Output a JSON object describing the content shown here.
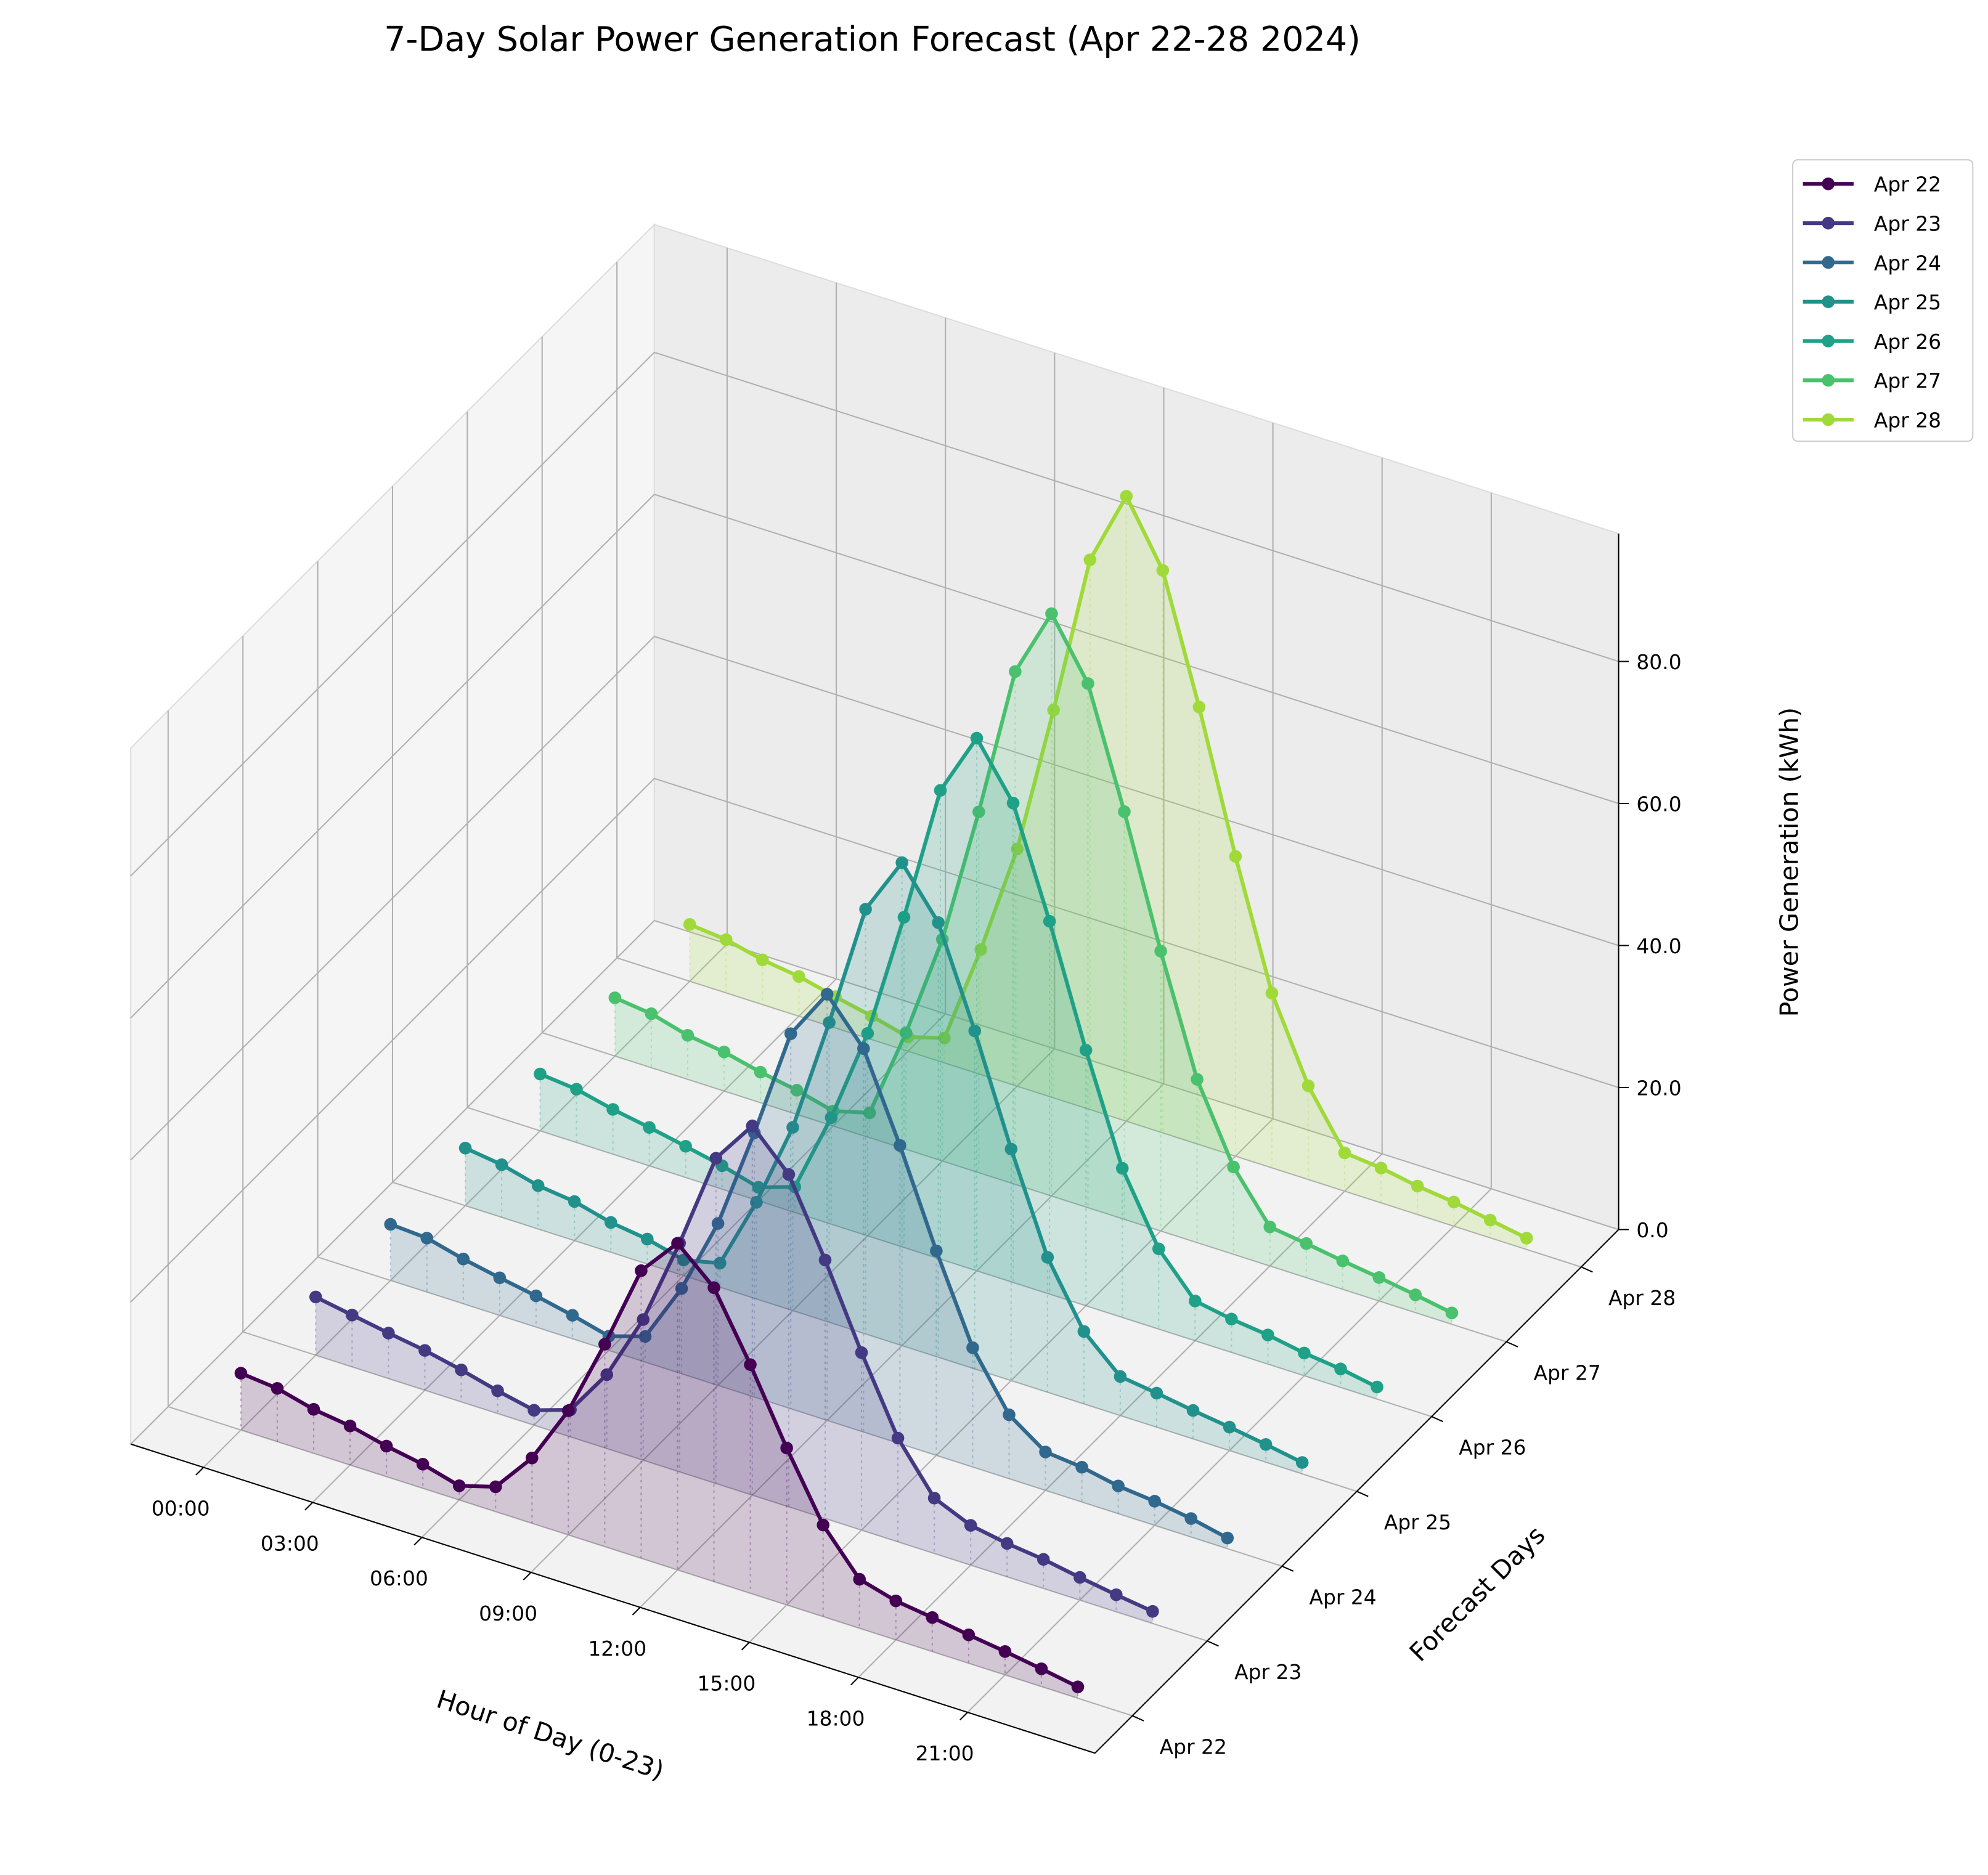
{
  "chart_data": {
    "type": "line3d",
    "title": "7-Day Solar Power Generation Forecast (Apr 22-28 2024)",
    "x_label": "Hour of Day (0-23)",
    "y_label": "Forecast Days",
    "z_label": "Power Generation (kWh)",
    "x": [
      0,
      1,
      2,
      3,
      4,
      5,
      6,
      7,
      8,
      9,
      10,
      11,
      12,
      13,
      14,
      15,
      16,
      17,
      18,
      19,
      20,
      21,
      22,
      23
    ],
    "xlim": [
      -2,
      24.5
    ],
    "xticks": [
      {
        "value": 0,
        "label": "00:00"
      },
      {
        "value": 3,
        "label": "03:00"
      },
      {
        "value": 6,
        "label": "06:00"
      },
      {
        "value": 9,
        "label": "09:00"
      },
      {
        "value": 12,
        "label": "12:00"
      },
      {
        "value": 15,
        "label": "15:00"
      },
      {
        "value": 18,
        "label": "18:00"
      },
      {
        "value": 21,
        "label": "21:00"
      }
    ],
    "ylim": [
      -0.5,
      6.5
    ],
    "zlim": [
      0,
      98
    ],
    "zticks": [
      {
        "value": 0,
        "label": "0.0"
      },
      {
        "value": 20,
        "label": "20.0"
      },
      {
        "value": 40,
        "label": "40.0"
      },
      {
        "value": 60,
        "label": "60.0"
      },
      {
        "value": 80,
        "label": "80.0"
      }
    ],
    "grid": true,
    "legend": "upper right",
    "series": [
      {
        "name": "Apr 22",
        "color": "#440154",
        "values": [
          8,
          7.5,
          6.2,
          5.5,
          4.3,
          3.4,
          2,
          3.5,
          9.2,
          17.5,
          28.5,
          40.5,
          46,
          41.4,
          32.2,
          22.1,
          12.9,
          6.9,
          5.5,
          4.8,
          4,
          3.3,
          2.5,
          1.6
        ]
      },
      {
        "name": "Apr 23",
        "color": "#443983",
        "values": [
          8.2,
          7.3,
          6.4,
          5.6,
          4.5,
          3.2,
          2.1,
          3.8,
          10.4,
          19.8,
          32.2,
          45.8,
          52,
          46.8,
          36.4,
          25,
          14.6,
          7.8,
          5.6,
          4.7,
          4.1,
          3.2,
          2.4,
          1.7
        ]
      },
      {
        "name": "Apr 24",
        "color": "#31688e",
        "values": [
          7.9,
          7.6,
          6.3,
          5.3,
          4.4,
          3.3,
          2,
          3.6,
          12,
          22.8,
          37.2,
          52.8,
          60,
          54,
          42,
          28.8,
          16.8,
          9,
          5.4,
          4.9,
          3.9,
          3.4,
          2.6,
          1.5
        ]
      },
      {
        "name": "Apr 25",
        "color": "#21918c",
        "values": [
          8.1,
          7.4,
          6.1,
          5.5,
          4.2,
          3.5,
          2.2,
          3.4,
          13.6,
          25.8,
          42.2,
          59.8,
          68,
          61.2,
          47.6,
          32.6,
          19,
          10.2,
          5.5,
          4.8,
          4,
          3.3,
          2.5,
          1.6
        ]
      },
      {
        "name": "Apr 26",
        "color": "#1fa187",
        "values": [
          8,
          7.5,
          6.3,
          5.4,
          4.4,
          3.3,
          1.9,
          3.6,
          15,
          28.5,
          46.5,
          66,
          75,
          67.5,
          52.5,
          36,
          21,
          11.3,
          5.6,
          4.7,
          4.1,
          3.2,
          2.6,
          1.7
        ]
      },
      {
        "name": "Apr 27",
        "color": "#4ac16d",
        "values": [
          8.2,
          7.6,
          6.2,
          5.5,
          4.3,
          3.4,
          2.1,
          3.5,
          16.4,
          31.2,
          50.8,
          72.2,
          82,
          73.8,
          57.4,
          39.4,
          23,
          12.3,
          5.5,
          4.8,
          4,
          3.3,
          2.5,
          1.6
        ]
      },
      {
        "name": "Apr 28",
        "color": "#a0da39",
        "values": [
          8,
          7.5,
          6.3,
          5.6,
          4.4,
          3.3,
          2,
          3.5,
          17.6,
          33.4,
          54.6,
          77.4,
          88,
          79.2,
          61.6,
          42.2,
          24.6,
          13.2,
          5.4,
          4.9,
          4,
          3.4,
          2.5,
          1.6
        ]
      }
    ]
  }
}
